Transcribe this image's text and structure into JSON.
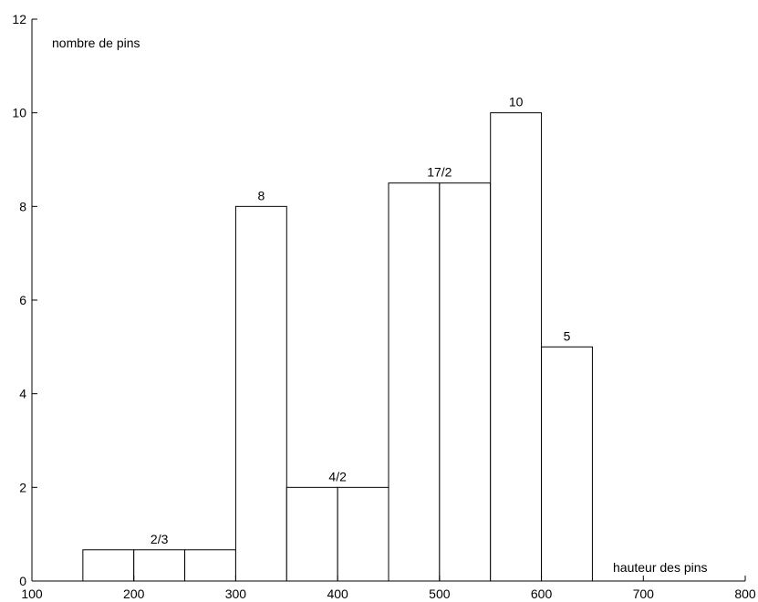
{
  "chart_data": {
    "type": "bar",
    "histogram": true,
    "bins": [
      {
        "x0": 150,
        "x1": 200,
        "value": 0.6667
      },
      {
        "x0": 200,
        "x1": 250,
        "value": 0.6667
      },
      {
        "x0": 250,
        "x1": 300,
        "value": 0.6667
      },
      {
        "x0": 300,
        "x1": 350,
        "value": 8
      },
      {
        "x0": 350,
        "x1": 400,
        "value": 2
      },
      {
        "x0": 400,
        "x1": 450,
        "value": 2
      },
      {
        "x0": 450,
        "x1": 500,
        "value": 8.5
      },
      {
        "x0": 500,
        "x1": 550,
        "value": 8.5
      },
      {
        "x0": 550,
        "x1": 600,
        "value": 10
      },
      {
        "x0": 600,
        "x1": 650,
        "value": 5
      }
    ],
    "annotations": [
      {
        "text": "2/3",
        "x": 225,
        "y": 0.6667
      },
      {
        "text": "8",
        "x": 325,
        "y": 8
      },
      {
        "text": "4/2",
        "x": 400,
        "y": 2
      },
      {
        "text": "17/2",
        "x": 500,
        "y": 8.5
      },
      {
        "text": "10",
        "x": 575,
        "y": 10
      },
      {
        "text": "5",
        "x": 625,
        "y": 5
      }
    ],
    "xlabel": "hauteur des pins",
    "ylabel": "nombre de pins",
    "xlim": [
      100,
      800
    ],
    "ylim": [
      0,
      12
    ],
    "xticks": [
      100,
      200,
      300,
      400,
      500,
      600,
      700,
      800
    ],
    "yticks": [
      0,
      2,
      4,
      6,
      8,
      10,
      12
    ],
    "grid": false,
    "colors": {
      "stroke": "#000000",
      "fill": "#ffffff"
    }
  }
}
